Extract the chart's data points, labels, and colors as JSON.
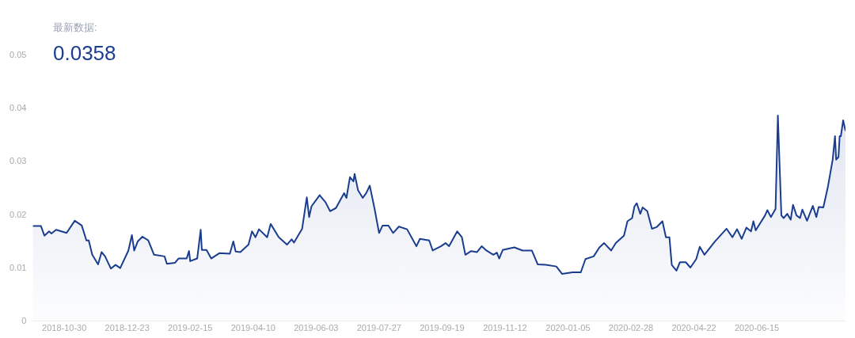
{
  "chart_data": {
    "type": "area",
    "annotations": [
      "最新数据:",
      "0.0358"
    ],
    "xlim": [
      "2018-10-03",
      "2020-08-30"
    ],
    "xticks": [
      "2018-10-30",
      "2018-12-23",
      "2019-02-15",
      "2019-04-10",
      "2019-06-03",
      "2019-07-27",
      "2019-09-19",
      "2019-11-12",
      "2020-01-05",
      "2020-02-28",
      "2020-04-22",
      "2020-06-15"
    ],
    "ylim": [
      0,
      0.05
    ],
    "yticks": [
      0,
      0.01,
      0.02,
      0.03,
      0.04,
      0.05
    ],
    "grid": false,
    "legend": false,
    "marker": "none",
    "line_style": "solid",
    "series": [
      {
        "color": "#1a3d8f",
        "x": [
          "2018-10-03",
          "2018-10-10",
          "2018-10-13",
          "2018-10-17",
          "2018-10-19",
          "2018-10-23",
          "2018-11-01",
          "2018-11-08",
          "2018-11-14",
          "2018-11-18",
          "2018-11-20",
          "2018-11-23",
          "2018-11-28",
          "2018-12-01",
          "2018-12-04",
          "2018-12-09",
          "2018-12-13",
          "2018-12-17",
          "2018-12-24",
          "2018-12-27",
          "2018-12-29",
          "2019-01-01",
          "2019-01-05",
          "2019-01-10",
          "2019-01-15",
          "2019-01-24",
          "2019-01-26",
          "2019-02-02",
          "2019-02-05",
          "2019-02-12",
          "2019-02-14",
          "2019-02-15",
          "2019-02-21",
          "2019-02-24",
          "2019-02-25",
          "2019-03-01",
          "2019-03-05",
          "2019-03-12",
          "2019-03-21",
          "2019-03-24",
          "2019-03-26",
          "2019-03-30",
          "2019-04-06",
          "2019-04-09",
          "2019-04-12",
          "2019-04-15",
          "2019-04-22",
          "2019-04-25",
          "2019-05-02",
          "2019-05-09",
          "2019-05-13",
          "2019-05-15",
          "2019-05-22",
          "2019-05-26",
          "2019-05-28",
          "2019-05-30",
          "2019-06-06",
          "2019-06-11",
          "2019-06-15",
          "2019-06-20",
          "2019-06-27",
          "2019-06-29",
          "2019-07-02",
          "2019-07-05",
          "2019-07-06",
          "2019-07-09",
          "2019-07-13",
          "2019-07-16",
          "2019-07-19",
          "2019-07-23",
          "2019-07-27",
          "2019-07-30",
          "2019-08-04",
          "2019-08-08",
          "2019-08-13",
          "2019-08-20",
          "2019-08-28",
          "2019-08-31",
          "2019-09-08",
          "2019-09-11",
          "2019-09-18",
          "2019-09-22",
          "2019-09-25",
          "2019-10-02",
          "2019-10-06",
          "2019-10-09",
          "2019-10-14",
          "2019-10-19",
          "2019-10-23",
          "2019-10-27",
          "2019-11-02",
          "2019-11-05",
          "2019-11-07",
          "2019-11-10",
          "2019-11-20",
          "2019-11-27",
          "2019-12-05",
          "2019-12-10",
          "2019-12-17",
          "2019-12-26",
          "2019-12-31",
          "2020-01-09",
          "2020-01-16",
          "2020-01-20",
          "2020-01-27",
          "2020-02-01",
          "2020-02-05",
          "2020-02-11",
          "2020-02-15",
          "2020-02-22",
          "2020-02-25",
          "2020-02-29",
          "2020-03-02",
          "2020-03-04",
          "2020-03-07",
          "2020-03-09",
          "2020-03-13",
          "2020-03-17",
          "2020-03-21",
          "2020-03-26",
          "2020-03-29",
          "2020-04-01",
          "2020-04-03",
          "2020-04-07",
          "2020-04-10",
          "2020-04-15",
          "2020-04-19",
          "2020-04-24",
          "2020-04-27",
          "2020-05-01",
          "2020-05-10",
          "2020-05-20",
          "2020-05-25",
          "2020-05-29",
          "2020-06-02",
          "2020-06-06",
          "2020-06-10",
          "2020-06-12",
          "2020-06-14",
          "2020-06-22",
          "2020-06-24",
          "2020-06-27",
          "2020-07-01",
          "2020-07-03",
          "2020-07-06",
          "2020-07-08",
          "2020-07-11",
          "2020-07-14",
          "2020-07-16",
          "2020-07-19",
          "2020-07-22",
          "2020-07-24",
          "2020-07-28",
          "2020-08-02",
          "2020-08-05",
          "2020-08-07",
          "2020-08-11",
          "2020-08-15",
          "2020-08-17",
          "2020-08-19",
          "2020-08-21",
          "2020-08-22",
          "2020-08-24",
          "2020-08-25",
          "2020-08-26",
          "2020-08-28",
          "2020-08-30"
        ],
        "values": [
          0.0179,
          0.0179,
          0.0161,
          0.0169,
          0.0165,
          0.0172,
          0.0166,
          0.0189,
          0.018,
          0.0152,
          0.0152,
          0.0125,
          0.0107,
          0.013,
          0.0122,
          0.0099,
          0.0106,
          0.01,
          0.0133,
          0.0162,
          0.0133,
          0.015,
          0.0159,
          0.0152,
          0.0125,
          0.0122,
          0.0108,
          0.011,
          0.0118,
          0.0118,
          0.0132,
          0.0113,
          0.0118,
          0.0172,
          0.0134,
          0.0134,
          0.0118,
          0.0128,
          0.0127,
          0.015,
          0.0131,
          0.013,
          0.0144,
          0.0169,
          0.0158,
          0.0173,
          0.0158,
          0.0183,
          0.0158,
          0.0144,
          0.0154,
          0.0148,
          0.0174,
          0.0233,
          0.0196,
          0.0216,
          0.0237,
          0.0224,
          0.0207,
          0.0213,
          0.0241,
          0.0232,
          0.0271,
          0.0263,
          0.0277,
          0.0246,
          0.0232,
          0.0241,
          0.0255,
          0.0213,
          0.0166,
          0.018,
          0.018,
          0.0166,
          0.0178,
          0.0173,
          0.0141,
          0.0155,
          0.0152,
          0.0133,
          0.0141,
          0.0147,
          0.0141,
          0.0169,
          0.0158,
          0.0125,
          0.0132,
          0.013,
          0.0141,
          0.0133,
          0.0125,
          0.0129,
          0.0118,
          0.0134,
          0.0139,
          0.0133,
          0.0133,
          0.0107,
          0.0106,
          0.0103,
          0.0089,
          0.0092,
          0.0092,
          0.0117,
          0.0122,
          0.0139,
          0.0147,
          0.0133,
          0.0147,
          0.0161,
          0.0188,
          0.0194,
          0.0216,
          0.0222,
          0.0202,
          0.0214,
          0.0207,
          0.0174,
          0.0177,
          0.0188,
          0.0158,
          0.0158,
          0.0106,
          0.0095,
          0.0111,
          0.0111,
          0.0101,
          0.0117,
          0.014,
          0.0125,
          0.015,
          0.0174,
          0.0158,
          0.0173,
          0.0155,
          0.0176,
          0.0169,
          0.0188,
          0.0171,
          0.0199,
          0.0209,
          0.0196,
          0.0211,
          0.0387,
          0.0199,
          0.0194,
          0.0202,
          0.0191,
          0.0219,
          0.0199,
          0.0194,
          0.021,
          0.0189,
          0.0217,
          0.0196,
          0.0215,
          0.0214,
          0.0254,
          0.0279,
          0.0304,
          0.0348,
          0.0304,
          0.0309,
          0.0348,
          0.0348,
          0.0378,
          0.0358
        ]
      }
    ]
  }
}
